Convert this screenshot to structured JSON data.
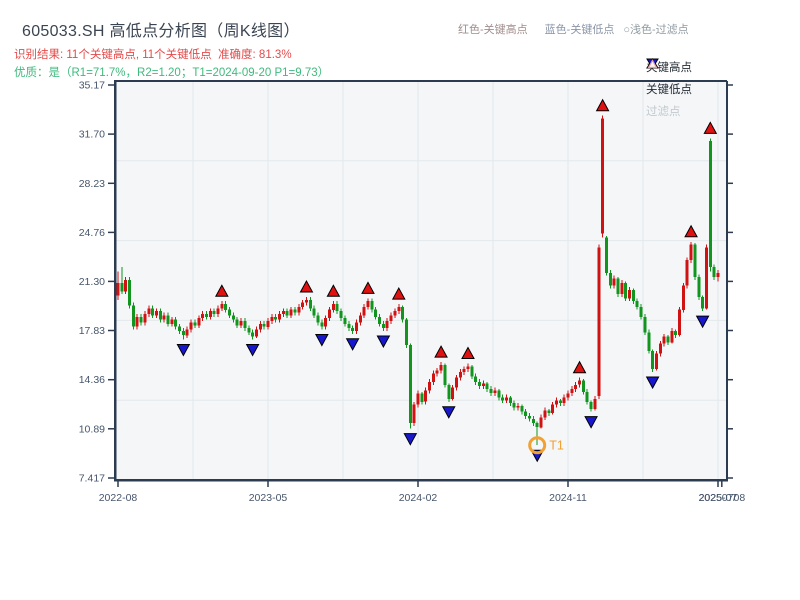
{
  "header": {
    "title": "605033.SH 高低点分析图（周K线图）",
    "result_line": "识别结果: 11个关键高点, 11个关键低点  准确度: 81.3%",
    "quality_line": "优质：是（R1=71.7%，R2=1.20；T1=2024-09-20 P1=9.73）"
  },
  "top_legend": {
    "high_label": "红色-关键高点",
    "low_label": "蓝色-关键低点",
    "filter_prefix": "○",
    "filter_label": "浅色-过滤点"
  },
  "legend": {
    "items": [
      {
        "label": "关键高点",
        "marker": "triangle-up",
        "color": "#e01111"
      },
      {
        "label": "关键低点",
        "marker": "triangle-down",
        "color": "#1717cd"
      },
      {
        "label": "过滤点",
        "marker": "triangle-up-outline",
        "color": "#e9b3b3",
        "disabled": true
      }
    ]
  },
  "chart_data": {
    "type": "candlestick",
    "symbol": "605033.SH",
    "timeframe": "weekly",
    "ylim": [
      7.417,
      35.17
    ],
    "grid": "light",
    "y_ticks": [
      {
        "label": "35.17",
        "v": 35.17
      },
      {
        "label": "31.70",
        "v": 31.7
      },
      {
        "label": "28.23",
        "v": 28.23
      },
      {
        "label": "24.76",
        "v": 24.76
      },
      {
        "label": "21.30",
        "v": 21.3
      },
      {
        "label": "17.83",
        "v": 17.83
      },
      {
        "label": "14.36",
        "v": 14.36
      },
      {
        "label": "10.89",
        "v": 10.89
      },
      {
        "label": "7.417",
        "v": 7.417
      }
    ],
    "x_ticks": [
      {
        "label": "2022-08",
        "w": 0
      },
      {
        "label": "2023-05",
        "w": 39
      },
      {
        "label": "2024-02",
        "w": 78
      },
      {
        "label": "2024-11",
        "w": 117
      },
      {
        "label": "2025-07",
        "w": 156
      },
      {
        "label": "20250708",
        "w": 157
      }
    ],
    "colors": {
      "up": "#d01212",
      "down": "#12951f",
      "key_high": "#e01111",
      "key_low": "#1717cd",
      "filtered": "#fdf4f4",
      "filtered_edge": "#e0a0a0",
      "t1": "#f0a132",
      "spine": "#2c3b50",
      "plot_bg": "#f4f6f8",
      "grid": "#e3e8eb"
    },
    "candles": [
      [
        20.3,
        22.0,
        20.0,
        21.2
      ],
      [
        21.2,
        22.3,
        20.4,
        20.6
      ],
      [
        20.6,
        21.6,
        20.4,
        21.4
      ],
      [
        21.4,
        21.6,
        19.4,
        19.6
      ],
      [
        19.6,
        19.8,
        17.9,
        18.1
      ],
      [
        18.1,
        19.0,
        17.9,
        18.8
      ],
      [
        18.8,
        19.0,
        18.2,
        18.4
      ],
      [
        18.4,
        19.2,
        18.2,
        19.0
      ],
      [
        19.0,
        19.6,
        18.8,
        19.4
      ],
      [
        19.4,
        19.6,
        18.7,
        18.9
      ],
      [
        18.9,
        19.4,
        18.7,
        19.2
      ],
      [
        19.2,
        19.4,
        18.4,
        18.6
      ],
      [
        18.6,
        19.1,
        18.4,
        18.9
      ],
      [
        18.9,
        19.1,
        18.1,
        18.3
      ],
      [
        18.3,
        18.8,
        18.1,
        18.6
      ],
      [
        18.6,
        18.8,
        17.9,
        18.1
      ],
      [
        18.1,
        18.3,
        17.6,
        17.8
      ],
      [
        17.8,
        18.0,
        17.2,
        17.5
      ],
      [
        17.5,
        18.1,
        17.3,
        17.9
      ],
      [
        17.9,
        18.6,
        17.7,
        18.4
      ],
      [
        18.4,
        18.6,
        18.0,
        18.2
      ],
      [
        18.2,
        18.9,
        18.0,
        18.7
      ],
      [
        18.7,
        19.2,
        18.5,
        19.0
      ],
      [
        19.0,
        19.2,
        18.6,
        18.8
      ],
      [
        18.8,
        19.4,
        18.6,
        19.2
      ],
      [
        19.2,
        19.4,
        18.8,
        19.0
      ],
      [
        19.0,
        19.6,
        18.8,
        19.4
      ],
      [
        19.4,
        19.9,
        19.2,
        19.7
      ],
      [
        19.7,
        19.9,
        19.1,
        19.3
      ],
      [
        19.3,
        19.5,
        18.7,
        18.9
      ],
      [
        18.9,
        19.1,
        18.4,
        18.6
      ],
      [
        18.6,
        18.8,
        18.0,
        18.2
      ],
      [
        18.2,
        18.7,
        18.0,
        18.5
      ],
      [
        18.5,
        18.7,
        17.8,
        18.0
      ],
      [
        18.0,
        18.2,
        17.5,
        17.7
      ],
      [
        17.7,
        17.9,
        17.2,
        17.4
      ],
      [
        17.4,
        18.1,
        17.3,
        17.9
      ],
      [
        17.9,
        18.5,
        17.7,
        18.3
      ],
      [
        18.3,
        18.5,
        17.9,
        18.1
      ],
      [
        18.1,
        18.7,
        17.9,
        18.5
      ],
      [
        18.5,
        19.0,
        18.3,
        18.8
      ],
      [
        18.8,
        19.0,
        18.4,
        18.6
      ],
      [
        18.6,
        19.2,
        18.4,
        19.0
      ],
      [
        19.0,
        19.4,
        18.8,
        19.2
      ],
      [
        19.2,
        19.4,
        18.7,
        18.9
      ],
      [
        18.9,
        19.5,
        18.7,
        19.3
      ],
      [
        19.3,
        19.5,
        18.9,
        19.1
      ],
      [
        19.1,
        19.7,
        18.9,
        19.5
      ],
      [
        19.5,
        20.0,
        19.3,
        19.8
      ],
      [
        19.8,
        20.2,
        19.6,
        20.0
      ],
      [
        20.0,
        20.2,
        19.2,
        19.4
      ],
      [
        19.4,
        19.6,
        18.7,
        18.9
      ],
      [
        18.9,
        19.1,
        18.2,
        18.4
      ],
      [
        18.4,
        18.6,
        17.9,
        18.1
      ],
      [
        18.1,
        18.9,
        17.9,
        18.7
      ],
      [
        18.7,
        19.5,
        18.5,
        19.3
      ],
      [
        19.3,
        19.9,
        19.1,
        19.7
      ],
      [
        19.7,
        19.9,
        19.0,
        19.2
      ],
      [
        19.2,
        19.4,
        18.5,
        18.7
      ],
      [
        18.7,
        18.9,
        18.1,
        18.3
      ],
      [
        18.3,
        18.5,
        17.8,
        18.0
      ],
      [
        18.0,
        18.2,
        17.6,
        17.8
      ],
      [
        17.8,
        18.6,
        17.6,
        18.4
      ],
      [
        18.4,
        19.1,
        18.2,
        18.9
      ],
      [
        18.9,
        19.7,
        18.7,
        19.5
      ],
      [
        19.5,
        20.1,
        19.3,
        19.9
      ],
      [
        19.9,
        20.1,
        19.1,
        19.3
      ],
      [
        19.3,
        19.5,
        18.6,
        18.8
      ],
      [
        18.8,
        19.0,
        18.1,
        18.3
      ],
      [
        18.3,
        18.5,
        17.8,
        18.0
      ],
      [
        18.0,
        18.7,
        17.8,
        18.5
      ],
      [
        18.5,
        19.1,
        18.3,
        18.9
      ],
      [
        18.9,
        19.4,
        18.7,
        19.2
      ],
      [
        19.2,
        19.7,
        19.0,
        19.5
      ],
      [
        19.5,
        19.6,
        18.4,
        18.6
      ],
      [
        18.6,
        18.7,
        16.6,
        16.8
      ],
      [
        16.8,
        16.9,
        10.9,
        11.3
      ],
      [
        11.3,
        12.8,
        11.1,
        12.6
      ],
      [
        12.6,
        13.6,
        12.4,
        13.4
      ],
      [
        13.4,
        13.5,
        12.6,
        12.8
      ],
      [
        12.8,
        13.8,
        12.6,
        13.6
      ],
      [
        13.6,
        14.4,
        13.4,
        14.2
      ],
      [
        14.2,
        15.0,
        14.0,
        14.8
      ],
      [
        14.8,
        15.2,
        14.6,
        15.0
      ],
      [
        15.0,
        15.6,
        14.8,
        15.4
      ],
      [
        15.4,
        15.5,
        13.8,
        14.0
      ],
      [
        14.0,
        14.1,
        12.8,
        13.0
      ],
      [
        13.0,
        14.0,
        12.9,
        13.8
      ],
      [
        13.8,
        14.7,
        13.6,
        14.5
      ],
      [
        14.5,
        15.1,
        14.3,
        14.9
      ],
      [
        14.9,
        15.3,
        14.7,
        15.1
      ],
      [
        15.1,
        15.5,
        14.9,
        15.3
      ],
      [
        15.3,
        15.4,
        14.4,
        14.6
      ],
      [
        14.6,
        14.8,
        14.0,
        14.2
      ],
      [
        14.2,
        14.4,
        13.7,
        13.9
      ],
      [
        13.9,
        14.3,
        13.7,
        14.1
      ],
      [
        14.1,
        14.2,
        13.5,
        13.7
      ],
      [
        13.7,
        13.9,
        13.2,
        13.4
      ],
      [
        13.4,
        13.8,
        13.2,
        13.6
      ],
      [
        13.6,
        13.7,
        12.9,
        13.1
      ],
      [
        13.1,
        13.3,
        12.7,
        12.9
      ],
      [
        12.9,
        13.3,
        12.7,
        13.1
      ],
      [
        13.1,
        13.2,
        12.5,
        12.7
      ],
      [
        12.7,
        12.9,
        12.2,
        12.4
      ],
      [
        12.4,
        12.7,
        12.2,
        12.5
      ],
      [
        12.5,
        12.6,
        11.9,
        12.1
      ],
      [
        12.1,
        12.3,
        11.6,
        11.8
      ],
      [
        11.8,
        12.0,
        11.4,
        11.6
      ],
      [
        11.6,
        11.8,
        11.1,
        11.3
      ],
      [
        11.3,
        11.4,
        9.73,
        11.0
      ],
      [
        11.0,
        11.9,
        10.9,
        11.7
      ],
      [
        11.7,
        12.4,
        11.5,
        12.2
      ],
      [
        12.2,
        12.3,
        11.8,
        12.0
      ],
      [
        12.0,
        12.8,
        11.9,
        12.6
      ],
      [
        12.6,
        13.1,
        12.4,
        12.9
      ],
      [
        12.9,
        13.0,
        12.5,
        12.7
      ],
      [
        12.7,
        13.3,
        12.5,
        13.1
      ],
      [
        13.1,
        13.6,
        12.9,
        13.4
      ],
      [
        13.4,
        13.9,
        13.2,
        13.7
      ],
      [
        13.7,
        14.2,
        13.5,
        14.0
      ],
      [
        14.0,
        14.5,
        13.8,
        14.3
      ],
      [
        14.3,
        14.4,
        13.3,
        13.5
      ],
      [
        13.5,
        13.7,
        12.6,
        12.8
      ],
      [
        12.8,
        12.9,
        12.1,
        12.3
      ],
      [
        12.3,
        13.2,
        12.2,
        13.0
      ],
      [
        13.2,
        23.9,
        13.0,
        23.7
      ],
      [
        24.7,
        33.0,
        24.4,
        32.8
      ],
      [
        24.4,
        24.5,
        21.7,
        21.9
      ],
      [
        21.9,
        22.1,
        20.8,
        21.0
      ],
      [
        21.0,
        21.7,
        20.8,
        21.5
      ],
      [
        21.5,
        21.6,
        20.2,
        20.4
      ],
      [
        20.4,
        21.4,
        20.2,
        21.2
      ],
      [
        21.2,
        21.3,
        19.9,
        20.1
      ],
      [
        20.1,
        20.9,
        19.9,
        20.7
      ],
      [
        20.7,
        20.8,
        19.7,
        19.9
      ],
      [
        19.9,
        20.1,
        19.3,
        19.5
      ],
      [
        19.5,
        19.7,
        18.6,
        18.8
      ],
      [
        18.8,
        19.0,
        17.5,
        17.7
      ],
      [
        17.7,
        17.9,
        16.2,
        16.4
      ],
      [
        16.4,
        16.5,
        14.9,
        15.1
      ],
      [
        15.1,
        16.4,
        15.0,
        16.2
      ],
      [
        16.2,
        17.1,
        16.0,
        16.9
      ],
      [
        16.9,
        17.6,
        16.7,
        17.4
      ],
      [
        17.4,
        17.5,
        16.8,
        17.0
      ],
      [
        17.0,
        18.0,
        16.9,
        17.8
      ],
      [
        17.8,
        17.9,
        17.3,
        17.5
      ],
      [
        17.5,
        19.5,
        17.4,
        19.3
      ],
      [
        19.3,
        21.2,
        19.1,
        21.0
      ],
      [
        21.0,
        23.0,
        20.8,
        22.8
      ],
      [
        22.8,
        24.1,
        22.6,
        23.9
      ],
      [
        23.9,
        24.0,
        21.4,
        21.6
      ],
      [
        21.6,
        21.8,
        20.0,
        20.2
      ],
      [
        20.2,
        20.3,
        19.2,
        19.4
      ],
      [
        19.4,
        23.9,
        19.3,
        23.7
      ],
      [
        31.2,
        31.4,
        22.0,
        22.3
      ],
      [
        22.3,
        22.5,
        21.4,
        21.6
      ],
      [
        21.6,
        22.1,
        21.3,
        21.9
      ]
    ],
    "key_high_weeks": [
      27,
      49,
      56,
      65,
      73,
      84,
      91,
      120,
      126,
      149,
      154
    ],
    "key_low_weeks": [
      17,
      35,
      53,
      61,
      69,
      76,
      86,
      109,
      123,
      139,
      152
    ],
    "t1": {
      "week": 109,
      "label": "T1",
      "date": "2024-09-20",
      "price": 9.73
    }
  }
}
